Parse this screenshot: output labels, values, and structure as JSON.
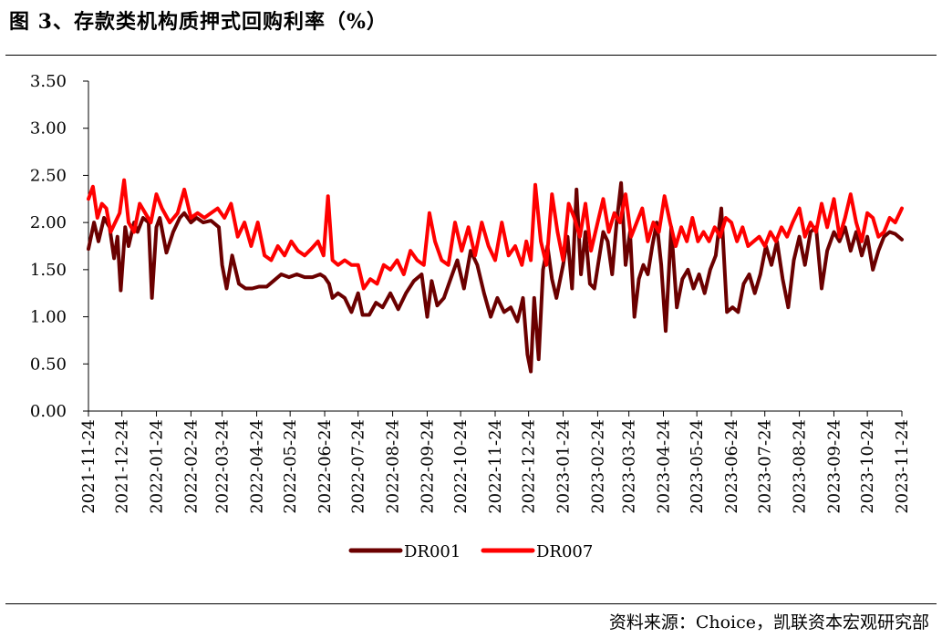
{
  "header": {
    "title": "图 3、存款类机构质押式回购利率（%）"
  },
  "footer": {
    "source": "资料来源：Choice，凯联资本宏观研究部"
  },
  "chart_data": {
    "type": "line",
    "ylim": [
      0,
      3.5
    ],
    "yticks": [
      "0.00",
      "0.50",
      "1.00",
      "1.50",
      "2.00",
      "2.50",
      "3.00",
      "3.50"
    ],
    "xlim": [
      "2021-11-24",
      "2023-11-24"
    ],
    "xticks": [
      "2021-11-24",
      "2021-12-24",
      "2022-01-24",
      "2022-02-24",
      "2022-03-24",
      "2022-04-24",
      "2022-05-24",
      "2022-06-24",
      "2022-07-24",
      "2022-08-24",
      "2022-09-24",
      "2022-10-24",
      "2022-11-24",
      "2022-12-24",
      "2023-01-24",
      "2023-02-24",
      "2023-03-24",
      "2023-04-24",
      "2023-05-24",
      "2023-06-24",
      "2023-07-24",
      "2023-08-24",
      "2023-09-24",
      "2023-10-24",
      "2023-11-24"
    ],
    "legend_position": "bottom",
    "series": [
      {
        "name": "DR001",
        "color": "#6b0000",
        "x": [
          "2021-11-24",
          "2021-11-29",
          "2021-12-03",
          "2021-12-08",
          "2021-12-13",
          "2021-12-17",
          "2021-12-20",
          "2021-12-23",
          "2021-12-27",
          "2021-12-30",
          "2022-01-04",
          "2022-01-07",
          "2022-01-12",
          "2022-01-17",
          "2022-01-20",
          "2022-01-24",
          "2022-01-27",
          "2022-02-02",
          "2022-02-08",
          "2022-02-14",
          "2022-02-18",
          "2022-02-24",
          "2022-03-01",
          "2022-03-07",
          "2022-03-14",
          "2022-03-21",
          "2022-03-24",
          "2022-03-28",
          "2022-04-02",
          "2022-04-08",
          "2022-04-14",
          "2022-04-20",
          "2022-04-26",
          "2022-05-03",
          "2022-05-09",
          "2022-05-16",
          "2022-05-23",
          "2022-05-30",
          "2022-06-06",
          "2022-06-13",
          "2022-06-20",
          "2022-06-24",
          "2022-06-28",
          "2022-07-01",
          "2022-07-06",
          "2022-07-12",
          "2022-07-18",
          "2022-07-24",
          "2022-07-28",
          "2022-08-03",
          "2022-08-09",
          "2022-08-15",
          "2022-08-22",
          "2022-08-29",
          "2022-09-05",
          "2022-09-12",
          "2022-09-19",
          "2022-09-24",
          "2022-09-28",
          "2022-10-03",
          "2022-10-09",
          "2022-10-15",
          "2022-10-21",
          "2022-10-27",
          "2022-11-02",
          "2022-11-08",
          "2022-11-14",
          "2022-11-20",
          "2022-11-26",
          "2022-12-02",
          "2022-12-08",
          "2022-12-14",
          "2022-12-19",
          "2022-12-23",
          "2022-12-26",
          "2022-12-29",
          "2023-01-02",
          "2023-01-06",
          "2023-01-10",
          "2023-01-14",
          "2023-01-18",
          "2023-01-24",
          "2023-01-28",
          "2023-02-01",
          "2023-02-05",
          "2023-02-09",
          "2023-02-13",
          "2023-02-17",
          "2023-02-21",
          "2023-02-25",
          "2023-03-01",
          "2023-03-05",
          "2023-03-09",
          "2023-03-13",
          "2023-03-17",
          "2023-03-21",
          "2023-03-25",
          "2023-03-29",
          "2023-04-02",
          "2023-04-06",
          "2023-04-10",
          "2023-04-14",
          "2023-04-18",
          "2023-04-22",
          "2023-04-26",
          "2023-05-01",
          "2023-05-06",
          "2023-05-11",
          "2023-05-16",
          "2023-05-21",
          "2023-05-26",
          "2023-05-31",
          "2023-06-05",
          "2023-06-10",
          "2023-06-15",
          "2023-06-20",
          "2023-06-25",
          "2023-06-30",
          "2023-07-05",
          "2023-07-10",
          "2023-07-15",
          "2023-07-20",
          "2023-07-25",
          "2023-07-30",
          "2023-08-04",
          "2023-08-09",
          "2023-08-14",
          "2023-08-19",
          "2023-08-24",
          "2023-08-29",
          "2023-09-03",
          "2023-09-08",
          "2023-09-13",
          "2023-09-18",
          "2023-09-24",
          "2023-09-29",
          "2023-10-04",
          "2023-10-09",
          "2023-10-14",
          "2023-10-19",
          "2023-10-24",
          "2023-10-29",
          "2023-11-03",
          "2023-11-08",
          "2023-11-13",
          "2023-11-18",
          "2023-11-24"
        ],
        "values": [
          1.72,
          2.0,
          1.8,
          2.05,
          1.95,
          1.62,
          1.85,
          1.28,
          1.95,
          1.75,
          2.0,
          1.9,
          2.05,
          2.0,
          1.2,
          1.95,
          2.05,
          1.68,
          1.9,
          2.05,
          2.1,
          2.0,
          2.05,
          2.0,
          2.02,
          1.95,
          1.55,
          1.3,
          1.65,
          1.35,
          1.3,
          1.3,
          1.32,
          1.32,
          1.38,
          1.45,
          1.42,
          1.45,
          1.42,
          1.42,
          1.45,
          1.42,
          1.35,
          1.2,
          1.25,
          1.2,
          1.05,
          1.25,
          1.02,
          1.02,
          1.15,
          1.1,
          1.25,
          1.08,
          1.25,
          1.38,
          1.45,
          1.0,
          1.38,
          1.12,
          1.2,
          1.4,
          1.6,
          1.3,
          1.7,
          1.55,
          1.25,
          1.0,
          1.2,
          1.05,
          1.1,
          0.95,
          1.2,
          0.6,
          0.42,
          1.2,
          0.55,
          1.5,
          1.75,
          1.4,
          1.2,
          1.55,
          1.85,
          1.3,
          2.35,
          1.45,
          1.9,
          1.35,
          1.3,
          1.6,
          1.9,
          1.8,
          1.45,
          2.0,
          2.42,
          1.55,
          1.9,
          1.0,
          1.4,
          1.55,
          1.45,
          1.75,
          2.0,
          1.55,
          0.85,
          1.95,
          1.1,
          1.4,
          1.5,
          1.3,
          1.45,
          1.25,
          1.5,
          1.65,
          2.15,
          1.05,
          1.1,
          1.05,
          1.35,
          1.45,
          1.25,
          1.45,
          1.75,
          1.55,
          1.8,
          1.4,
          1.1,
          1.6,
          1.85,
          1.55,
          1.9,
          1.95,
          1.3,
          1.7,
          1.9,
          1.8,
          1.95,
          1.7,
          1.9,
          1.65,
          1.85,
          1.5,
          1.7,
          1.85,
          1.9,
          1.88,
          1.82
        ]
      },
      {
        "name": "DR007",
        "color": "#ff0000",
        "x": [
          "2021-11-24",
          "2021-11-28",
          "2021-12-02",
          "2021-12-06",
          "2021-12-10",
          "2021-12-14",
          "2021-12-18",
          "2021-12-22",
          "2021-12-26",
          "2021-12-30",
          "2022-01-04",
          "2022-01-09",
          "2022-01-14",
          "2022-01-19",
          "2022-01-24",
          "2022-01-29",
          "2022-02-05",
          "2022-02-12",
          "2022-02-18",
          "2022-02-24",
          "2022-03-02",
          "2022-03-08",
          "2022-03-14",
          "2022-03-20",
          "2022-03-26",
          "2022-04-01",
          "2022-04-07",
          "2022-04-13",
          "2022-04-19",
          "2022-04-25",
          "2022-05-01",
          "2022-05-07",
          "2022-05-13",
          "2022-05-19",
          "2022-05-25",
          "2022-05-31",
          "2022-06-06",
          "2022-06-12",
          "2022-06-18",
          "2022-06-23",
          "2022-06-27",
          "2022-07-01",
          "2022-07-06",
          "2022-07-12",
          "2022-07-18",
          "2022-07-24",
          "2022-07-29",
          "2022-08-04",
          "2022-08-10",
          "2022-08-16",
          "2022-08-22",
          "2022-08-28",
          "2022-09-03",
          "2022-09-09",
          "2022-09-15",
          "2022-09-21",
          "2022-09-26",
          "2022-10-01",
          "2022-10-07",
          "2022-10-13",
          "2022-10-19",
          "2022-10-25",
          "2022-10-31",
          "2022-11-06",
          "2022-11-12",
          "2022-11-18",
          "2022-11-24",
          "2022-11-30",
          "2022-12-06",
          "2022-12-12",
          "2022-12-18",
          "2022-12-22",
          "2022-12-26",
          "2022-12-30",
          "2023-01-04",
          "2023-01-09",
          "2023-01-14",
          "2023-01-19",
          "2023-01-24",
          "2023-01-29",
          "2023-02-03",
          "2023-02-08",
          "2023-02-13",
          "2023-02-18",
          "2023-02-24",
          "2023-03-01",
          "2023-03-06",
          "2023-03-11",
          "2023-03-16",
          "2023-03-21",
          "2023-03-26",
          "2023-03-31",
          "2023-04-05",
          "2023-04-10",
          "2023-04-15",
          "2023-04-20",
          "2023-04-25",
          "2023-04-30",
          "2023-05-05",
          "2023-05-10",
          "2023-05-15",
          "2023-05-20",
          "2023-05-25",
          "2023-05-30",
          "2023-06-04",
          "2023-06-09",
          "2023-06-14",
          "2023-06-19",
          "2023-06-24",
          "2023-06-29",
          "2023-07-04",
          "2023-07-09",
          "2023-07-14",
          "2023-07-19",
          "2023-07-24",
          "2023-07-29",
          "2023-08-03",
          "2023-08-08",
          "2023-08-13",
          "2023-08-18",
          "2023-08-24",
          "2023-08-29",
          "2023-09-03",
          "2023-09-08",
          "2023-09-13",
          "2023-09-18",
          "2023-09-24",
          "2023-09-29",
          "2023-10-04",
          "2023-10-09",
          "2023-10-14",
          "2023-10-19",
          "2023-10-24",
          "2023-10-29",
          "2023-11-03",
          "2023-11-08",
          "2023-11-13",
          "2023-11-18",
          "2023-11-24"
        ],
        "values": [
          2.25,
          2.38,
          2.05,
          2.2,
          2.15,
          1.9,
          2.0,
          2.1,
          2.45,
          2.0,
          1.9,
          2.2,
          2.1,
          2.0,
          2.3,
          2.15,
          2.0,
          2.1,
          2.35,
          2.05,
          2.1,
          2.05,
          2.1,
          2.15,
          2.05,
          2.2,
          1.85,
          2.0,
          1.75,
          2.0,
          1.65,
          1.6,
          1.75,
          1.65,
          1.8,
          1.7,
          1.65,
          1.72,
          1.8,
          1.65,
          2.28,
          1.6,
          1.55,
          1.6,
          1.55,
          1.55,
          1.3,
          1.4,
          1.35,
          1.55,
          1.5,
          1.6,
          1.45,
          1.7,
          1.6,
          1.55,
          2.1,
          1.8,
          1.6,
          1.55,
          2.0,
          1.7,
          1.95,
          1.65,
          2.0,
          1.75,
          1.6,
          2.0,
          1.65,
          1.75,
          1.55,
          1.8,
          1.6,
          2.4,
          1.8,
          1.55,
          2.3,
          1.9,
          1.6,
          2.2,
          2.05,
          1.85,
          2.2,
          1.7,
          2.0,
          2.25,
          1.9,
          2.1,
          2.0,
          2.3,
          1.85,
          2.0,
          2.15,
          1.8,
          2.0,
          1.9,
          2.28,
          2.0,
          1.75,
          1.95,
          1.8,
          2.05,
          1.8,
          1.9,
          1.8,
          1.95,
          1.85,
          2.05,
          2.0,
          1.8,
          1.95,
          1.75,
          1.8,
          1.85,
          1.75,
          1.9,
          1.8,
          1.95,
          1.85,
          2.0,
          2.15,
          1.85,
          2.0,
          1.9,
          2.2,
          1.95,
          2.25,
          1.85,
          2.05,
          2.3,
          2.0,
          1.8,
          2.1,
          2.05,
          1.85,
          1.9,
          2.05,
          2.0,
          2.15
        ]
      }
    ]
  }
}
